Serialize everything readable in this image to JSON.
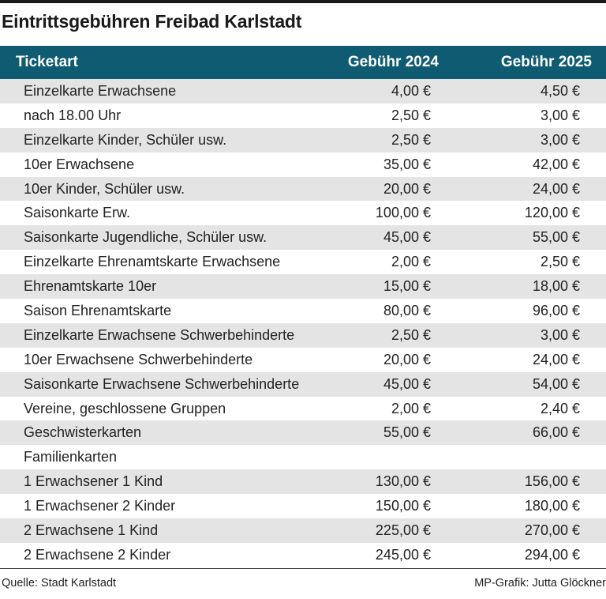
{
  "title": "Eintrittsgebühren Freibad Karlstadt",
  "table": {
    "headers": {
      "type": "Ticketart",
      "fee_2024": "Gebühr 2024",
      "fee_2025": "Gebühr 2025"
    },
    "rows": [
      {
        "type": "Einzelkarte Erwachsene",
        "fee_2024": "4,00 €",
        "fee_2025": "4,50 €"
      },
      {
        "type": "nach 18.00 Uhr",
        "fee_2024": "2,50 €",
        "fee_2025": "3,00 €"
      },
      {
        "type": "Einzelkarte Kinder, Schüler usw.",
        "fee_2024": "2,50 €",
        "fee_2025": "3,00 €"
      },
      {
        "type": "10er Erwachsene",
        "fee_2024": "35,00 €",
        "fee_2025": "42,00 €"
      },
      {
        "type": "10er Kinder, Schüler usw.",
        "fee_2024": "20,00 €",
        "fee_2025": "24,00 €"
      },
      {
        "type": "Saisonkarte Erw.",
        "fee_2024": "100,00 €",
        "fee_2025": "120,00 €"
      },
      {
        "type": "Saisonkarte Jugendliche, Schüler usw.",
        "fee_2024": "45,00 €",
        "fee_2025": "55,00 €"
      },
      {
        "type": "Einzelkarte Ehrenamtskarte Erwachsene",
        "fee_2024": "2,00 €",
        "fee_2025": "2,50 €"
      },
      {
        "type": "Ehrenamtskarte 10er",
        "fee_2024": "15,00 €",
        "fee_2025": "18,00 €"
      },
      {
        "type": "Saison Ehrenamtskarte",
        "fee_2024": "80,00 €",
        "fee_2025": "96,00 €"
      },
      {
        "type": "Einzelkarte Erwachsene Schwerbehinderte",
        "fee_2024": "2,50 €",
        "fee_2025": "3,00 €"
      },
      {
        "type": "10er Erwachsene Schwerbehinderte",
        "fee_2024": "20,00 €",
        "fee_2025": "24,00 €"
      },
      {
        "type": "Saisonkarte Erwachsene Schwerbehinderte",
        "fee_2024": "45,00 €",
        "fee_2025": "54,00 €"
      },
      {
        "type": "Vereine, geschlossene Gruppen",
        "fee_2024": "2,00 €",
        "fee_2025": "2,40 €"
      },
      {
        "type": "Geschwisterkarten",
        "fee_2024": "55,00 €",
        "fee_2025": "66,00 €"
      },
      {
        "type": "Familienkarten",
        "fee_2024": "",
        "fee_2025": ""
      },
      {
        "type": "1 Erwachsener 1 Kind",
        "fee_2024": "130,00 €",
        "fee_2025": "156,00 €"
      },
      {
        "type": "1 Erwachsener 2 Kinder",
        "fee_2024": "150,00 €",
        "fee_2025": "180,00 €"
      },
      {
        "type": "2 Erwachsene 1 Kind",
        "fee_2024": "225,00 €",
        "fee_2025": "270,00 €"
      },
      {
        "type": "2 Erwachsene 2 Kinder",
        "fee_2024": "245,00 €",
        "fee_2025": "294,00 €"
      }
    ]
  },
  "footer": {
    "source": "Quelle: Stadt Karlstadt",
    "credit": "MP-Grafik: Jutta Glöckner"
  },
  "colors": {
    "header_background": "#0f5b72",
    "stripe": "#e4e4e4"
  }
}
